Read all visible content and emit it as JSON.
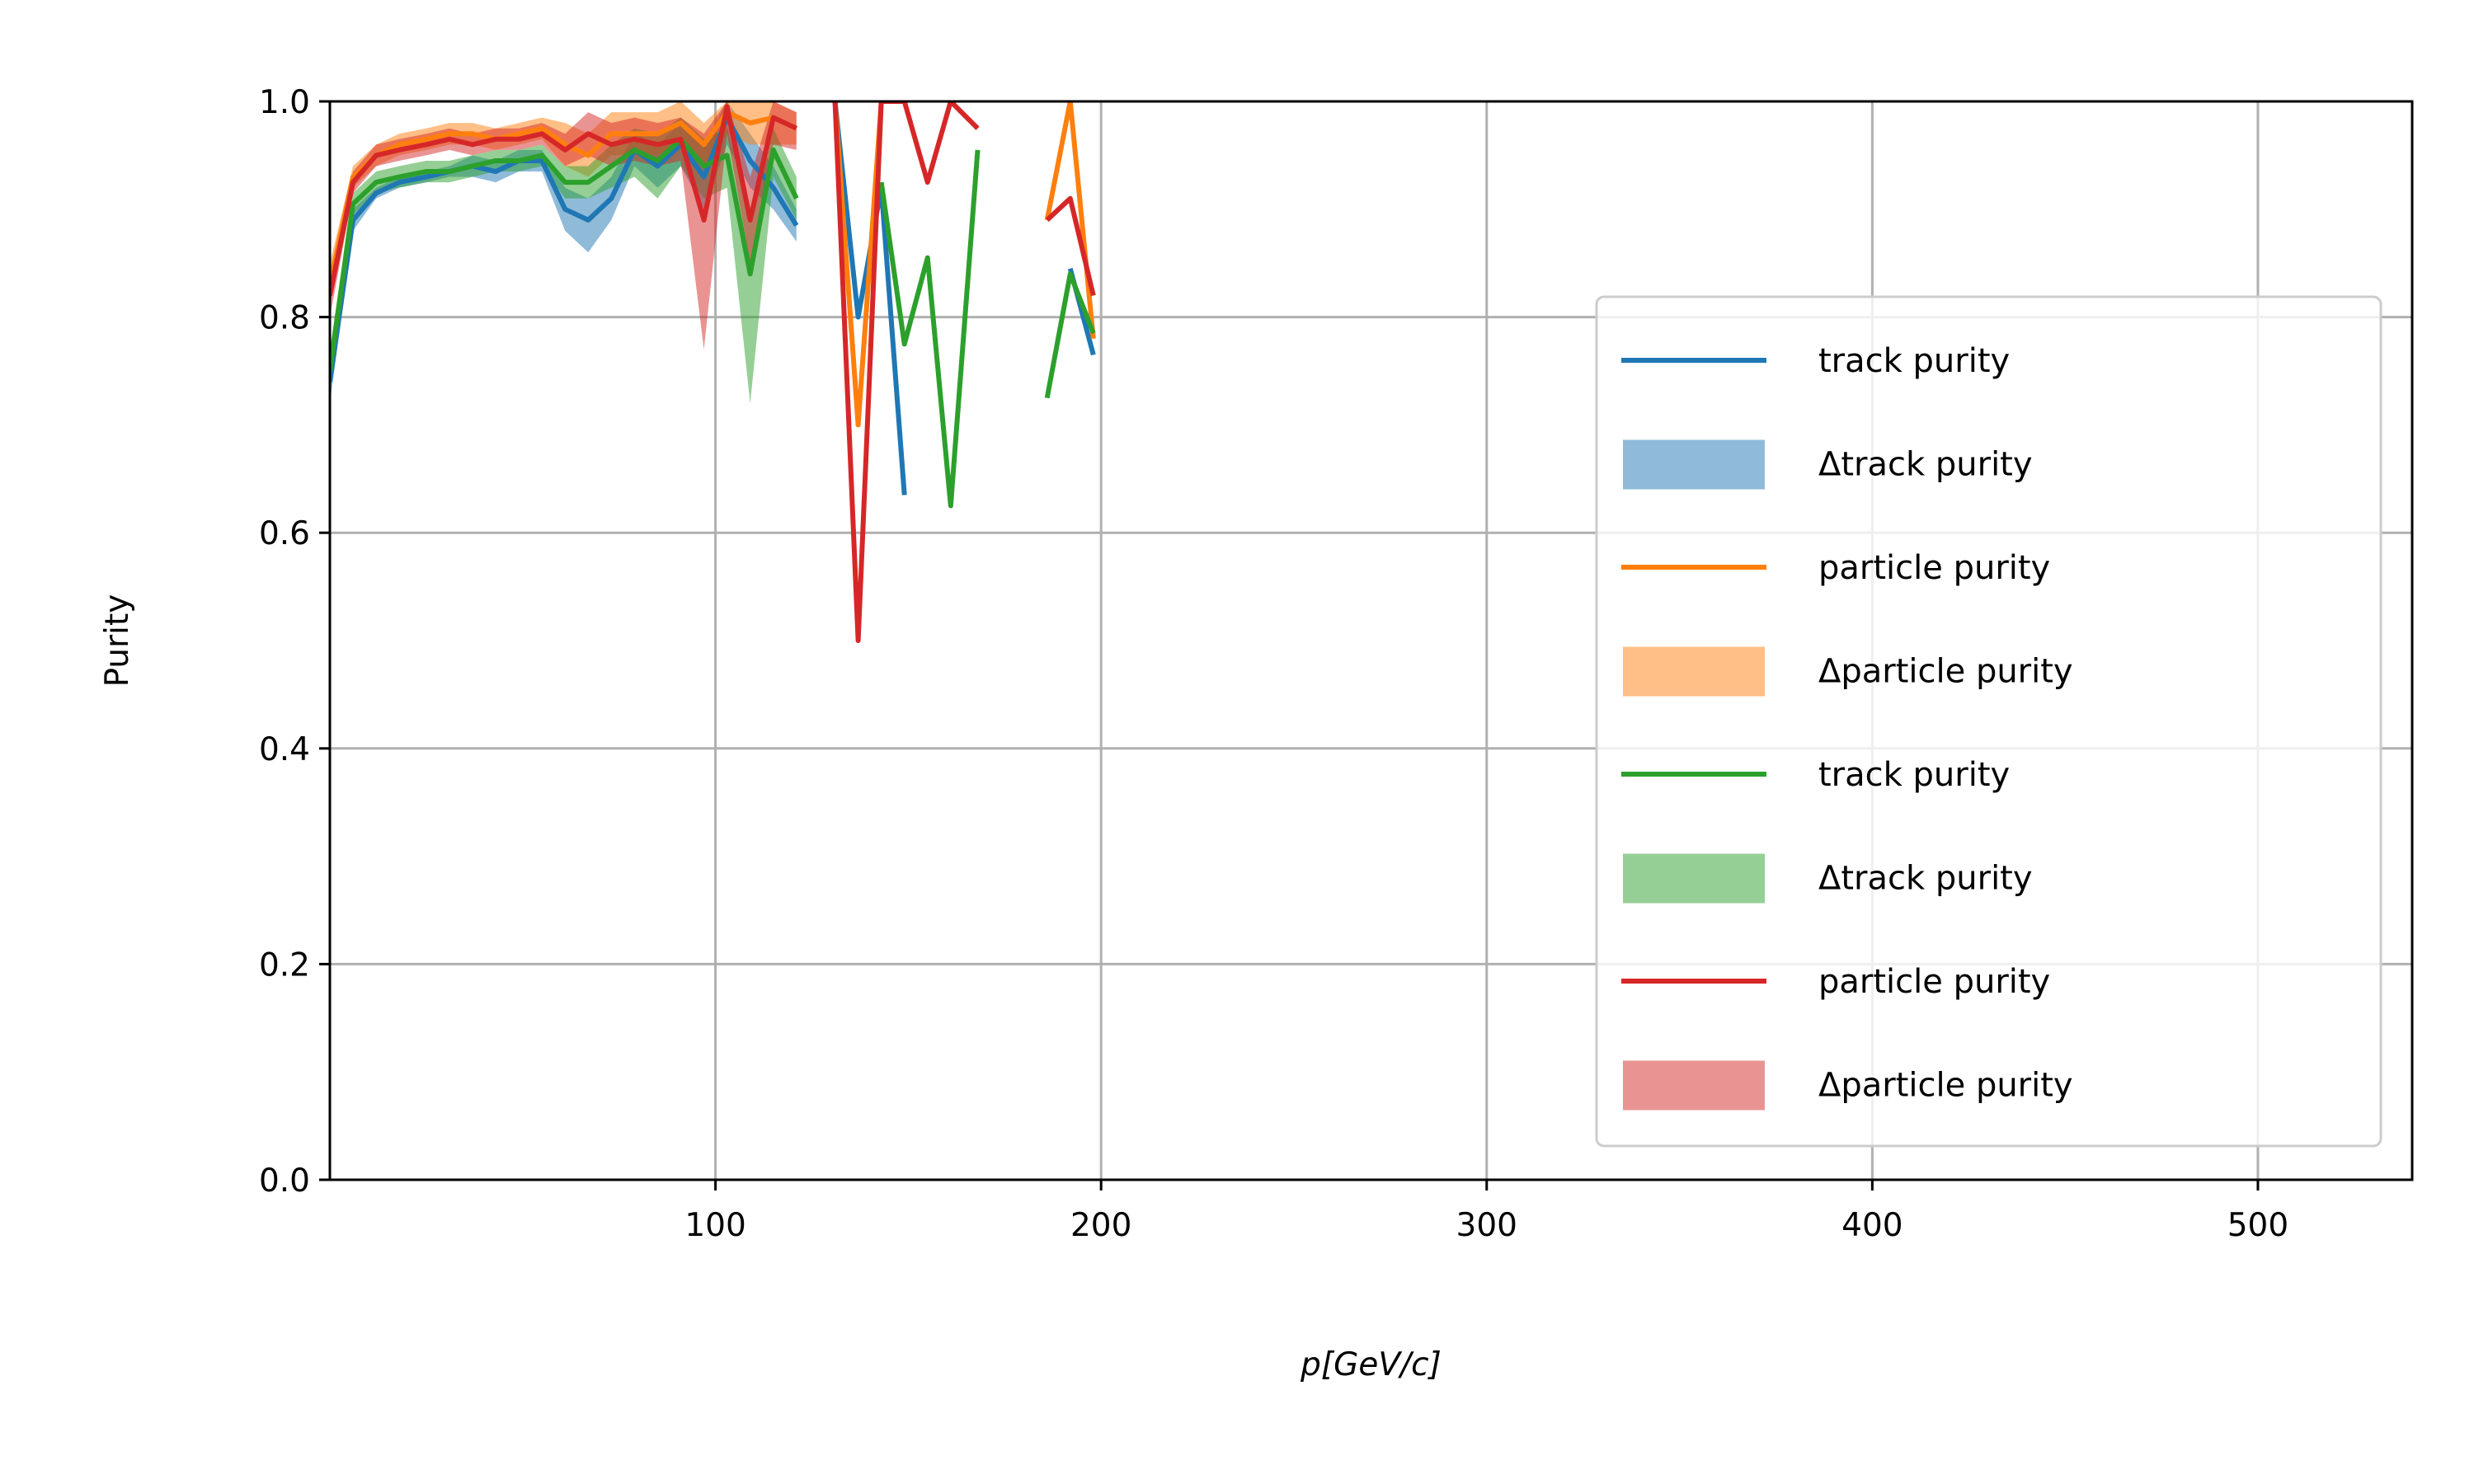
{
  "chart_data": {
    "type": "line",
    "xlabel": "p[GeV/c]",
    "ylabel": "Purity",
    "xlim": [
      0,
      540
    ],
    "ylim": [
      0.0,
      1.0
    ],
    "xticks": [
      100,
      200,
      300,
      400,
      500
    ],
    "yticks": [
      0.0,
      0.2,
      0.4,
      0.6,
      0.8,
      1.0
    ],
    "ytick_labels": [
      "0.0",
      "0.2",
      "0.4",
      "0.6",
      "0.8",
      "1.0"
    ],
    "grid": true,
    "legend_position": "center-right",
    "series": [
      {
        "name": "track purity",
        "band_name": "Δtrack purity",
        "color": "#1f77b4",
        "band_color": "#1f77b4",
        "segments": [
          [
            [
              0,
              0.74
            ],
            [
              6,
              0.89
            ],
            [
              12,
              0.915
            ],
            [
              18,
              0.925
            ],
            [
              25,
              0.93
            ],
            [
              31,
              0.935
            ],
            [
              37,
              0.94
            ],
            [
              43,
              0.935
            ],
            [
              49,
              0.945
            ],
            [
              55,
              0.945
            ],
            [
              61,
              0.9
            ],
            [
              67,
              0.89
            ],
            [
              73,
              0.91
            ],
            [
              79,
              0.955
            ],
            [
              85,
              0.94
            ],
            [
              91,
              0.96
            ],
            [
              97,
              0.93
            ],
            [
              103,
              0.985
            ],
            [
              109,
              0.945
            ],
            [
              115,
              0.92
            ],
            [
              121,
              0.885
            ]
          ],
          [
            [
              131,
              1.0
            ],
            [
              137,
              0.8
            ],
            [
              143,
              0.92
            ],
            [
              149,
              0.635
            ]
          ],
          [
            [
              192,
              0.845
            ],
            [
              198,
              0.765
            ]
          ]
        ],
        "band_segments": [
          [
            [
              0,
              0.72,
              0.76
            ],
            [
              6,
              0.88,
              0.9
            ],
            [
              12,
              0.91,
              0.92
            ],
            [
              18,
              0.92,
              0.93
            ],
            [
              25,
              0.925,
              0.935
            ],
            [
              31,
              0.93,
              0.94
            ],
            [
              37,
              0.93,
              0.95
            ],
            [
              43,
              0.925,
              0.945
            ],
            [
              49,
              0.935,
              0.955
            ],
            [
              55,
              0.935,
              0.955
            ],
            [
              61,
              0.88,
              0.92
            ],
            [
              67,
              0.86,
              0.91
            ],
            [
              73,
              0.89,
              0.93
            ],
            [
              79,
              0.94,
              0.97
            ],
            [
              85,
              0.92,
              0.96
            ],
            [
              91,
              0.94,
              0.98
            ],
            [
              97,
              0.9,
              0.96
            ],
            [
              103,
              0.96,
              1.0
            ],
            [
              109,
              0.92,
              0.97
            ],
            [
              115,
              0.9,
              0.94
            ],
            [
              121,
              0.87,
              0.9
            ]
          ]
        ]
      },
      {
        "name": "particle purity",
        "band_name": "Δparticle purity",
        "color": "#ff7f0e",
        "band_color": "#ff7f0e",
        "segments": [
          [
            [
              0,
              0.83
            ],
            [
              6,
              0.93
            ],
            [
              12,
              0.95
            ],
            [
              18,
              0.96
            ],
            [
              25,
              0.965
            ],
            [
              31,
              0.97
            ],
            [
              37,
              0.97
            ],
            [
              43,
              0.965
            ],
            [
              49,
              0.97
            ],
            [
              55,
              0.975
            ],
            [
              61,
              0.96
            ],
            [
              67,
              0.95
            ],
            [
              73,
              0.97
            ],
            [
              79,
              0.97
            ],
            [
              85,
              0.97
            ],
            [
              91,
              0.98
            ],
            [
              97,
              0.96
            ],
            [
              103,
              0.99
            ],
            [
              109,
              0.98
            ],
            [
              115,
              0.985
            ],
            [
              121,
              0.975
            ]
          ],
          [
            [
              131,
              1.0
            ],
            [
              137,
              0.7
            ],
            [
              143,
              1.0
            ]
          ],
          [
            [
              186,
              0.89
            ],
            [
              192,
              1.0
            ],
            [
              198,
              0.78
            ]
          ]
        ],
        "band_segments": [
          [
            [
              0,
              0.81,
              0.85
            ],
            [
              6,
              0.92,
              0.94
            ],
            [
              12,
              0.94,
              0.96
            ],
            [
              18,
              0.95,
              0.97
            ],
            [
              25,
              0.955,
              0.975
            ],
            [
              31,
              0.96,
              0.98
            ],
            [
              37,
              0.96,
              0.98
            ],
            [
              43,
              0.955,
              0.975
            ],
            [
              49,
              0.96,
              0.98
            ],
            [
              55,
              0.965,
              0.985
            ],
            [
              61,
              0.94,
              0.98
            ],
            [
              67,
              0.93,
              0.97
            ],
            [
              73,
              0.95,
              0.99
            ],
            [
              79,
              0.95,
              0.99
            ],
            [
              85,
              0.95,
              0.99
            ],
            [
              91,
              0.96,
              1.0
            ],
            [
              97,
              0.94,
              0.98
            ],
            [
              103,
              0.97,
              1.0
            ],
            [
              109,
              0.96,
              1.0
            ],
            [
              115,
              0.96,
              1.0
            ],
            [
              121,
              0.96,
              0.99
            ]
          ]
        ]
      },
      {
        "name": "track purity",
        "band_name": "Δtrack purity",
        "color": "#2ca02c",
        "band_color": "#2ca02c",
        "segments": [
          [
            [
              0,
              0.75
            ],
            [
              6,
              0.905
            ],
            [
              12,
              0.925
            ],
            [
              18,
              0.93
            ],
            [
              25,
              0.935
            ],
            [
              31,
              0.935
            ],
            [
              37,
              0.94
            ],
            [
              43,
              0.945
            ],
            [
              49,
              0.945
            ],
            [
              55,
              0.95
            ],
            [
              61,
              0.925
            ],
            [
              67,
              0.925
            ],
            [
              73,
              0.94
            ],
            [
              79,
              0.955
            ],
            [
              85,
              0.945
            ],
            [
              91,
              0.965
            ],
            [
              97,
              0.94
            ],
            [
              103,
              0.95
            ],
            [
              109,
              0.84
            ],
            [
              115,
              0.955
            ],
            [
              121,
              0.91
            ]
          ],
          [
            [
              143,
              0.925
            ],
            [
              149,
              0.775
            ],
            [
              155,
              0.855
            ],
            [
              161,
              0.625
            ],
            [
              168,
              0.955
            ]
          ],
          [
            [
              186,
              0.725
            ],
            [
              192,
              0.84
            ],
            [
              198,
              0.785
            ]
          ]
        ],
        "band_segments": [
          [
            [
              0,
              0.73,
              0.77
            ],
            [
              6,
              0.895,
              0.915
            ],
            [
              12,
              0.915,
              0.935
            ],
            [
              18,
              0.92,
              0.94
            ],
            [
              25,
              0.925,
              0.945
            ],
            [
              31,
              0.925,
              0.945
            ],
            [
              37,
              0.93,
              0.95
            ],
            [
              43,
              0.935,
              0.955
            ],
            [
              49,
              0.935,
              0.955
            ],
            [
              55,
              0.94,
              0.96
            ],
            [
              61,
              0.91,
              0.94
            ],
            [
              67,
              0.91,
              0.94
            ],
            [
              73,
              0.92,
              0.96
            ],
            [
              79,
              0.93,
              0.975
            ],
            [
              85,
              0.91,
              0.97
            ],
            [
              91,
              0.94,
              0.985
            ],
            [
              97,
              0.91,
              0.965
            ],
            [
              103,
              0.92,
              0.975
            ],
            [
              109,
              0.72,
              0.9
            ],
            [
              115,
              0.93,
              0.975
            ],
            [
              121,
              0.89,
              0.93
            ]
          ]
        ]
      },
      {
        "name": "particle purity",
        "band_name": "Δparticle purity",
        "color": "#d62728",
        "band_color": "#d62728",
        "segments": [
          [
            [
              0,
              0.82
            ],
            [
              6,
              0.925
            ],
            [
              12,
              0.95
            ],
            [
              18,
              0.955
            ],
            [
              25,
              0.96
            ],
            [
              31,
              0.965
            ],
            [
              37,
              0.96
            ],
            [
              43,
              0.965
            ],
            [
              49,
              0.965
            ],
            [
              55,
              0.97
            ],
            [
              61,
              0.955
            ],
            [
              67,
              0.97
            ],
            [
              73,
              0.96
            ],
            [
              79,
              0.965
            ],
            [
              85,
              0.96
            ],
            [
              91,
              0.965
            ],
            [
              97,
              0.89
            ],
            [
              103,
              0.995
            ],
            [
              109,
              0.89
            ],
            [
              115,
              0.985
            ],
            [
              121,
              0.975
            ]
          ],
          [
            [
              131,
              1.0
            ],
            [
              137,
              0.5
            ],
            [
              143,
              1.0
            ],
            [
              149,
              1.0
            ],
            [
              155,
              0.925
            ],
            [
              161,
              1.0
            ],
            [
              168,
              0.975
            ]
          ],
          [
            [
              186,
              0.89
            ],
            [
              192,
              0.91
            ],
            [
              198,
              0.82
            ]
          ]
        ],
        "band_segments": [
          [
            [
              0,
              0.8,
              0.84
            ],
            [
              6,
              0.915,
              0.935
            ],
            [
              12,
              0.94,
              0.96
            ],
            [
              18,
              0.945,
              0.965
            ],
            [
              25,
              0.95,
              0.97
            ],
            [
              31,
              0.955,
              0.975
            ],
            [
              37,
              0.95,
              0.97
            ],
            [
              43,
              0.955,
              0.975
            ],
            [
              49,
              0.955,
              0.975
            ],
            [
              55,
              0.96,
              0.98
            ],
            [
              61,
              0.94,
              0.97
            ],
            [
              67,
              0.95,
              0.99
            ],
            [
              73,
              0.94,
              0.98
            ],
            [
              79,
              0.945,
              0.985
            ],
            [
              85,
              0.94,
              0.98
            ],
            [
              91,
              0.945,
              0.985
            ],
            [
              97,
              0.77,
              0.97
            ],
            [
              103,
              0.97,
              1.0
            ],
            [
              109,
              0.85,
              0.93
            ],
            [
              115,
              0.96,
              1.0
            ],
            [
              121,
              0.955,
              0.99
            ]
          ]
        ]
      }
    ]
  }
}
